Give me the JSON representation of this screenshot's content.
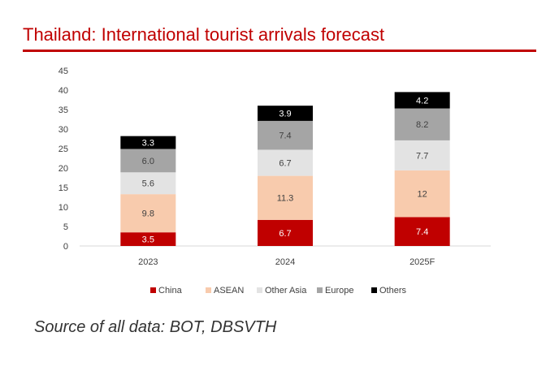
{
  "title": "Thailand: International tourist arrivals forecast",
  "source": "Source of all data: BOT, DBSVTH",
  "colors": {
    "title": "#c00000",
    "China": "#c00000",
    "ASEAN": "#f8cbad",
    "Other Asia": "#e3e3e3",
    "Europe": "#a5a5a5",
    "Others": "#000000"
  },
  "chart_data": {
    "type": "bar",
    "stacked": true,
    "title": "Thailand: International tourist arrivals forecast",
    "xlabel": "",
    "ylabel": "",
    "categories": [
      "2023",
      "2024",
      "2025F"
    ],
    "ylim": [
      0,
      45
    ],
    "yticks": [
      "0",
      "5",
      "10",
      "15",
      "20",
      "25",
      "30",
      "35",
      "40",
      "45"
    ],
    "grid": false,
    "legend_position": "bottom",
    "series": [
      {
        "name": "China",
        "values": [
          3.5,
          6.7,
          7.4
        ],
        "labels": [
          "3.5",
          "6.7",
          "7.4"
        ]
      },
      {
        "name": "ASEAN",
        "values": [
          9.8,
          11.3,
          12
        ],
        "labels": [
          "9.8",
          "11.3",
          "12"
        ]
      },
      {
        "name": "Other Asia",
        "values": [
          5.6,
          6.7,
          7.7
        ],
        "labels": [
          "5.6",
          "6.7",
          "7.7"
        ]
      },
      {
        "name": "Europe",
        "values": [
          6.0,
          7.4,
          8.2
        ],
        "labels": [
          "6.0",
          "7.4",
          "8.2"
        ]
      },
      {
        "name": "Others",
        "values": [
          3.3,
          3.9,
          4.2
        ],
        "labels": [
          "3.3",
          "3.9",
          "4.2"
        ]
      }
    ]
  }
}
